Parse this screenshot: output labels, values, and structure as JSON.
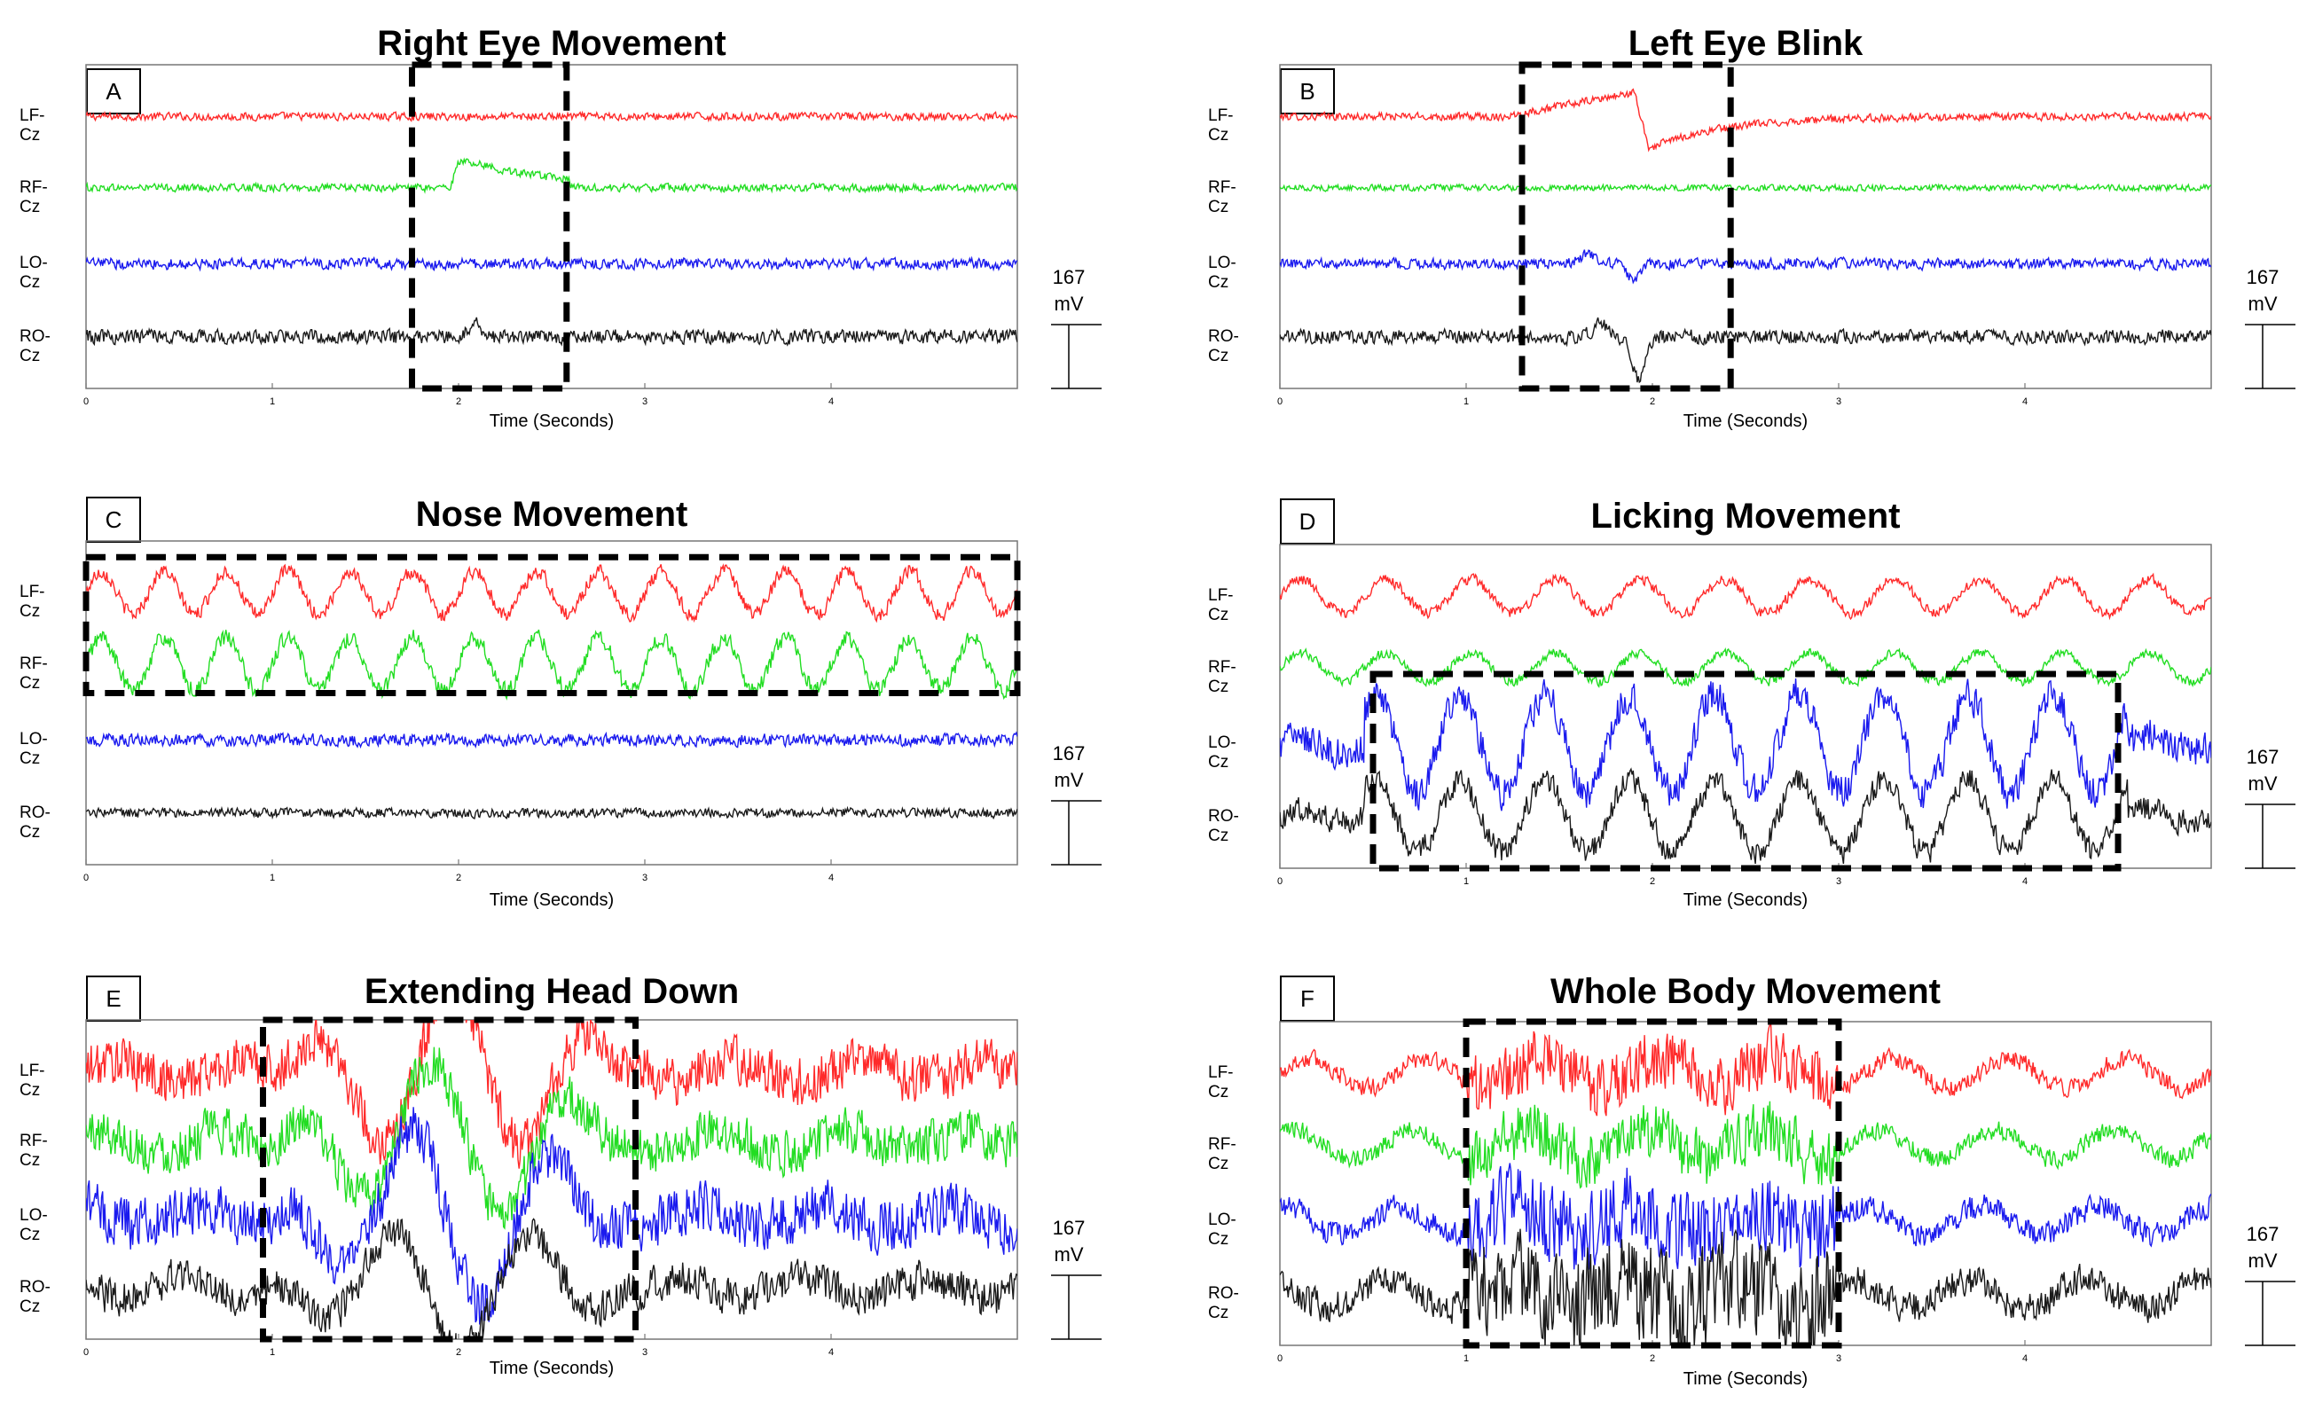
{
  "figure": {
    "channels": [
      "LF-Cz",
      "RF-Cz",
      "LO-Cz",
      "RO-Cz"
    ],
    "channel_colors": [
      "#ff2a2a",
      "#22dd22",
      "#1a1aee",
      "#1a1a1a"
    ],
    "scale_value": "167",
    "scale_unit": "mV"
  },
  "chart_data": [
    {
      "type": "line",
      "letter": "A",
      "title": "Right Eye Movement",
      "xlabel": "Time (Seconds)",
      "xlim": [
        0,
        5
      ],
      "xticks": [
        "0",
        "1",
        "2",
        "3",
        "4"
      ],
      "highlight": {
        "x": [
          1.75,
          2.58
        ],
        "channels": "all"
      },
      "series": [
        {
          "name": "LF-Cz",
          "pattern": "noise",
          "amp": 0.25
        },
        {
          "name": "RF-Cz",
          "pattern": "step",
          "amp": 0.25,
          "event": 2.0
        },
        {
          "name": "LO-Cz",
          "pattern": "noise",
          "amp": 0.35
        },
        {
          "name": "RO-Cz",
          "pattern": "spike",
          "amp": 0.45,
          "event": 2.08
        }
      ]
    },
    {
      "type": "line",
      "letter": "B",
      "title": "Left Eye Blink",
      "xlabel": "Time (Seconds)",
      "xlim": [
        0,
        5
      ],
      "xticks": [
        "0",
        "1",
        "2",
        "3",
        "4"
      ],
      "highlight": {
        "x": [
          1.3,
          2.42
        ],
        "channels": "all"
      },
      "series": [
        {
          "name": "LF-Cz",
          "pattern": "blink",
          "amp": 0.25,
          "event": 1.9
        },
        {
          "name": "RF-Cz",
          "pattern": "noise",
          "amp": 0.2
        },
        {
          "name": "LO-Cz",
          "pattern": "dip",
          "amp": 0.35,
          "event": 1.9
        },
        {
          "name": "RO-Cz",
          "pattern": "deepdip",
          "amp": 0.45,
          "event": 1.92
        }
      ]
    },
    {
      "type": "line",
      "letter": "C",
      "title": "Nose Movement",
      "xlabel": "Time (Seconds)",
      "xlim": [
        0,
        5
      ],
      "xticks": [
        "0",
        "1",
        "2",
        "3",
        "4"
      ],
      "highlight": {
        "x": [
          0.0,
          5.0
        ],
        "channels": "LF-Cz, RF-Cz"
      },
      "series": [
        {
          "name": "LF-Cz",
          "pattern": "periodic",
          "amp": 0.45,
          "freq": 3.0
        },
        {
          "name": "RF-Cz",
          "pattern": "periodic",
          "amp": 0.55,
          "freq": 3.0
        },
        {
          "name": "LO-Cz",
          "pattern": "noise",
          "amp": 0.4
        },
        {
          "name": "RO-Cz",
          "pattern": "noise",
          "amp": 0.3
        }
      ]
    },
    {
      "type": "line",
      "letter": "D",
      "title": "Licking Movement",
      "xlabel": "Time (Seconds)",
      "xlim": [
        0,
        5
      ],
      "xticks": [
        "0",
        "1",
        "2",
        "3",
        "4"
      ],
      "highlight": {
        "x": [
          0.5,
          4.5
        ],
        "channels": "RF-Cz, LO-Cz, RO-Cz"
      },
      "series": [
        {
          "name": "LF-Cz",
          "pattern": "periodic",
          "amp": 0.35,
          "freq": 2.2
        },
        {
          "name": "RF-Cz",
          "pattern": "periodic",
          "amp": 0.3,
          "freq": 2.2
        },
        {
          "name": "LO-Cz",
          "pattern": "lick",
          "amp": 1.1,
          "freq": 2.2
        },
        {
          "name": "RO-Cz",
          "pattern": "lick",
          "amp": 0.8,
          "freq": 2.2
        }
      ]
    },
    {
      "type": "line",
      "letter": "E",
      "title": "Extending Head Down",
      "xlabel": "Time (Seconds)",
      "xlim": [
        0,
        5
      ],
      "xticks": [
        "0",
        "1",
        "2",
        "3",
        "4"
      ],
      "highlight": {
        "x": [
          0.95,
          2.95
        ],
        "channels": "all"
      },
      "series": [
        {
          "name": "LF-Cz",
          "pattern": "headdown",
          "amp": 1.6,
          "event": 2.0
        },
        {
          "name": "RF-Cz",
          "pattern": "headdown",
          "amp": 1.5,
          "event": 2.2
        },
        {
          "name": "LO-Cz",
          "pattern": "headdown",
          "amp": 1.7,
          "event": 2.5
        },
        {
          "name": "RO-Cz",
          "pattern": "headdown",
          "amp": 1.2,
          "event": 2.0
        }
      ]
    },
    {
      "type": "line",
      "letter": "F",
      "title": "Whole Body Movement",
      "xlabel": "Time (Seconds)",
      "xlim": [
        0,
        5
      ],
      "xticks": [
        "0",
        "1",
        "2",
        "3",
        "4"
      ],
      "highlight": {
        "x": [
          1.0,
          3.0
        ],
        "channels": "all"
      },
      "series": [
        {
          "name": "LF-Cz",
          "pattern": "burst",
          "amp": 0.6
        },
        {
          "name": "RF-Cz",
          "pattern": "burst",
          "amp": 0.6
        },
        {
          "name": "LO-Cz",
          "pattern": "burst",
          "amp": 0.8
        },
        {
          "name": "RO-Cz",
          "pattern": "burst",
          "amp": 1.0
        }
      ]
    }
  ]
}
